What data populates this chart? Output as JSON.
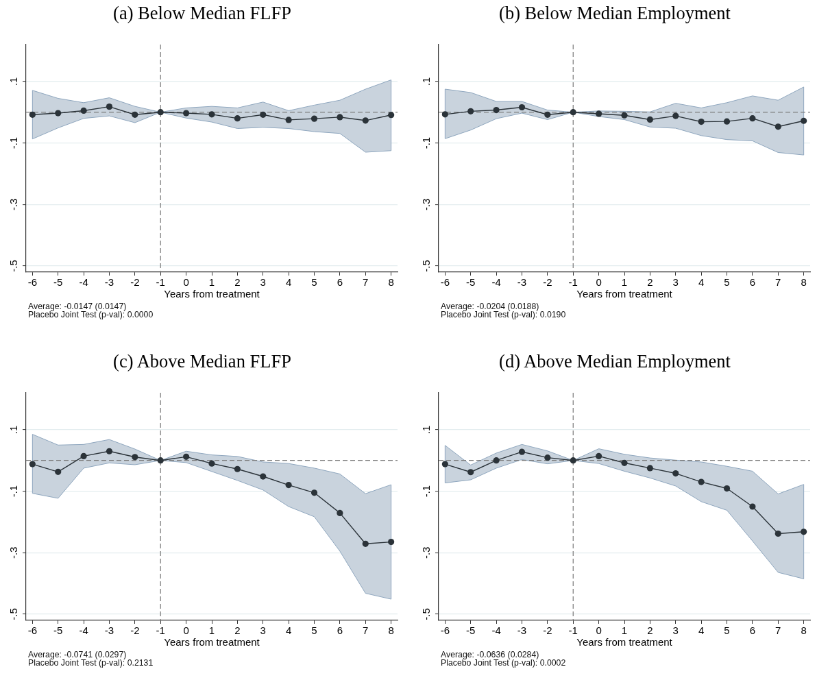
{
  "chart_data": [
    {
      "type": "line",
      "title": "(a) Below Median FLFP",
      "xlabel": "Years from treatment",
      "x": [
        -6,
        -5,
        -4,
        -3,
        -2,
        -1,
        0,
        1,
        2,
        3,
        4,
        5,
        6,
        7,
        8
      ],
      "series": [
        {
          "color": "#2b3339",
          "values": [
            -0.008,
            -0.003,
            0.005,
            0.018,
            -0.008,
            0,
            -0.003,
            -0.007,
            -0.02,
            -0.008,
            -0.025,
            -0.021,
            -0.016,
            -0.027,
            -0.009
          ],
          "lower": [
            -0.087,
            -0.051,
            -0.02,
            -0.012,
            -0.034,
            0,
            -0.019,
            -0.032,
            -0.053,
            -0.049,
            -0.053,
            -0.063,
            -0.069,
            -0.13,
            -0.125
          ],
          "upper": [
            0.071,
            0.045,
            0.031,
            0.047,
            0.019,
            0,
            0.014,
            0.019,
            0.014,
            0.033,
            0.005,
            0.023,
            0.039,
            0.075,
            0.105
          ]
        }
      ],
      "marker": "circle",
      "grid": "y",
      "xlim": [
        -6.25,
        8.25
      ],
      "xticks": [
        -6,
        -5,
        -4,
        -3,
        -2,
        -1,
        0,
        1,
        2,
        3,
        4,
        5,
        6,
        7,
        8
      ],
      "ylim": [
        -0.52,
        0.22
      ],
      "yticks": [
        {
          "value": -0.5,
          "label": "-.5"
        },
        {
          "value": -0.3,
          "label": "-.3"
        },
        {
          "value": -0.1,
          "label": "-.1"
        },
        {
          "value": 0.1,
          "label": ".1"
        }
      ],
      "ref_lines": [
        {
          "axis": "y",
          "value": 0,
          "line_style": "dashed",
          "color": "#7a7a7a"
        },
        {
          "axis": "x",
          "value": -1,
          "line_style": "dashed",
          "color": "#7a7a7a"
        }
      ],
      "annotations": [
        "Average: -0.0147 (0.0147)",
        "Placebo Joint Test (p-val): 0.0000"
      ]
    },
    {
      "type": "line",
      "title": "(b) Below Median Employment",
      "xlabel": "Years from treatment",
      "x": [
        -6,
        -5,
        -4,
        -3,
        -2,
        -1,
        0,
        1,
        2,
        3,
        4,
        5,
        6,
        7,
        8
      ],
      "series": [
        {
          "color": "#2b3339",
          "values": [
            -0.007,
            0.003,
            0.007,
            0.016,
            -0.008,
            0,
            -0.005,
            -0.01,
            -0.024,
            -0.012,
            -0.031,
            -0.03,
            -0.02,
            -0.047,
            -0.028
          ],
          "lower": [
            -0.086,
            -0.058,
            -0.021,
            -0.003,
            -0.024,
            0,
            -0.014,
            -0.024,
            -0.048,
            -0.052,
            -0.076,
            -0.089,
            -0.093,
            -0.131,
            -0.139
          ],
          "upper": [
            0.075,
            0.064,
            0.035,
            0.035,
            0.007,
            0,
            0.004,
            0.003,
            0.001,
            0.029,
            0.014,
            0.031,
            0.053,
            0.039,
            0.082
          ]
        }
      ],
      "marker": "circle",
      "grid": "y",
      "xlim": [
        -6.25,
        8.25
      ],
      "xticks": [
        -6,
        -5,
        -4,
        -3,
        -2,
        -1,
        0,
        1,
        2,
        3,
        4,
        5,
        6,
        7,
        8
      ],
      "ylim": [
        -0.52,
        0.22
      ],
      "yticks": [
        {
          "value": -0.5,
          "label": "-.5"
        },
        {
          "value": -0.3,
          "label": "-.3"
        },
        {
          "value": -0.1,
          "label": "-.1"
        },
        {
          "value": 0.1,
          "label": ".1"
        }
      ],
      "ref_lines": [
        {
          "axis": "y",
          "value": 0,
          "line_style": "dashed",
          "color": "#7a7a7a"
        },
        {
          "axis": "x",
          "value": -1,
          "line_style": "dashed",
          "color": "#7a7a7a"
        }
      ],
      "annotations": [
        "Average: -0.0204 (0.0188)",
        "Placebo Joint Test (p-val): 0.0190"
      ]
    },
    {
      "type": "line",
      "title": "(c) Above Median FLFP",
      "xlabel": "Years from treatment",
      "x": [
        -6,
        -5,
        -4,
        -3,
        -2,
        -1,
        0,
        1,
        2,
        3,
        4,
        5,
        6,
        7,
        8
      ],
      "series": [
        {
          "color": "#2b3339",
          "values": [
            -0.012,
            -0.037,
            0.014,
            0.03,
            0.011,
            0,
            0.012,
            -0.01,
            -0.028,
            -0.052,
            -0.08,
            -0.105,
            -0.171,
            -0.271,
            -0.265
          ],
          "lower": [
            -0.107,
            -0.123,
            -0.025,
            -0.008,
            -0.014,
            0,
            -0.007,
            -0.036,
            -0.065,
            -0.096,
            -0.15,
            -0.183,
            -0.295,
            -0.432,
            -0.451
          ],
          "upper": [
            0.085,
            0.05,
            0.052,
            0.068,
            0.037,
            0,
            0.03,
            0.018,
            0.013,
            -0.005,
            -0.01,
            -0.025,
            -0.044,
            -0.108,
            -0.079
          ]
        }
      ],
      "marker": "circle",
      "grid": "y",
      "xlim": [
        -6.25,
        8.25
      ],
      "xticks": [
        -6,
        -5,
        -4,
        -3,
        -2,
        -1,
        0,
        1,
        2,
        3,
        4,
        5,
        6,
        7,
        8
      ],
      "ylim": [
        -0.52,
        0.22
      ],
      "yticks": [
        {
          "value": -0.5,
          "label": "-.5"
        },
        {
          "value": -0.3,
          "label": "-.3"
        },
        {
          "value": -0.1,
          "label": "-.1"
        },
        {
          "value": 0.1,
          "label": ".1"
        }
      ],
      "ref_lines": [
        {
          "axis": "y",
          "value": 0,
          "line_style": "dashed",
          "color": "#7a7a7a"
        },
        {
          "axis": "x",
          "value": -1,
          "line_style": "dashed",
          "color": "#7a7a7a"
        }
      ],
      "annotations": [
        "Average: -0.0741 (0.0297)",
        "Placebo Joint Test (p-val): 0.2131"
      ]
    },
    {
      "type": "line",
      "title": "(d) Above Median Employment",
      "xlabel": "Years from treatment",
      "x": [
        -6,
        -5,
        -4,
        -3,
        -2,
        -1,
        0,
        1,
        2,
        3,
        4,
        5,
        6,
        7,
        8
      ],
      "series": [
        {
          "color": "#2b3339",
          "values": [
            -0.012,
            -0.038,
            0,
            0.028,
            0.009,
            0,
            0.014,
            -0.008,
            -0.025,
            -0.042,
            -0.07,
            -0.091,
            -0.15,
            -0.238,
            -0.232
          ],
          "lower": [
            -0.073,
            -0.063,
            -0.025,
            0.003,
            -0.011,
            0,
            -0.01,
            -0.035,
            -0.057,
            -0.083,
            -0.134,
            -0.162,
            -0.262,
            -0.364,
            -0.385
          ],
          "upper": [
            0.049,
            -0.015,
            0.024,
            0.052,
            0.031,
            0,
            0.038,
            0.02,
            0.008,
            0.001,
            -0.005,
            -0.019,
            -0.035,
            -0.109,
            -0.078
          ]
        }
      ],
      "marker": "circle",
      "grid": "y",
      "xlim": [
        -6.25,
        8.25
      ],
      "xticks": [
        -6,
        -5,
        -4,
        -3,
        -2,
        -1,
        0,
        1,
        2,
        3,
        4,
        5,
        6,
        7,
        8
      ],
      "ylim": [
        -0.52,
        0.22
      ],
      "yticks": [
        {
          "value": -0.5,
          "label": "-.5"
        },
        {
          "value": -0.3,
          "label": "-.3"
        },
        {
          "value": -0.1,
          "label": "-.1"
        },
        {
          "value": 0.1,
          "label": ".1"
        }
      ],
      "ref_lines": [
        {
          "axis": "y",
          "value": 0,
          "line_style": "dashed",
          "color": "#7a7a7a"
        },
        {
          "axis": "x",
          "value": -1,
          "line_style": "dashed",
          "color": "#7a7a7a"
        }
      ],
      "annotations": [
        "Average: -0.0636 (0.0284)",
        "Placebo Joint Test (p-val): 0.0002"
      ]
    }
  ]
}
